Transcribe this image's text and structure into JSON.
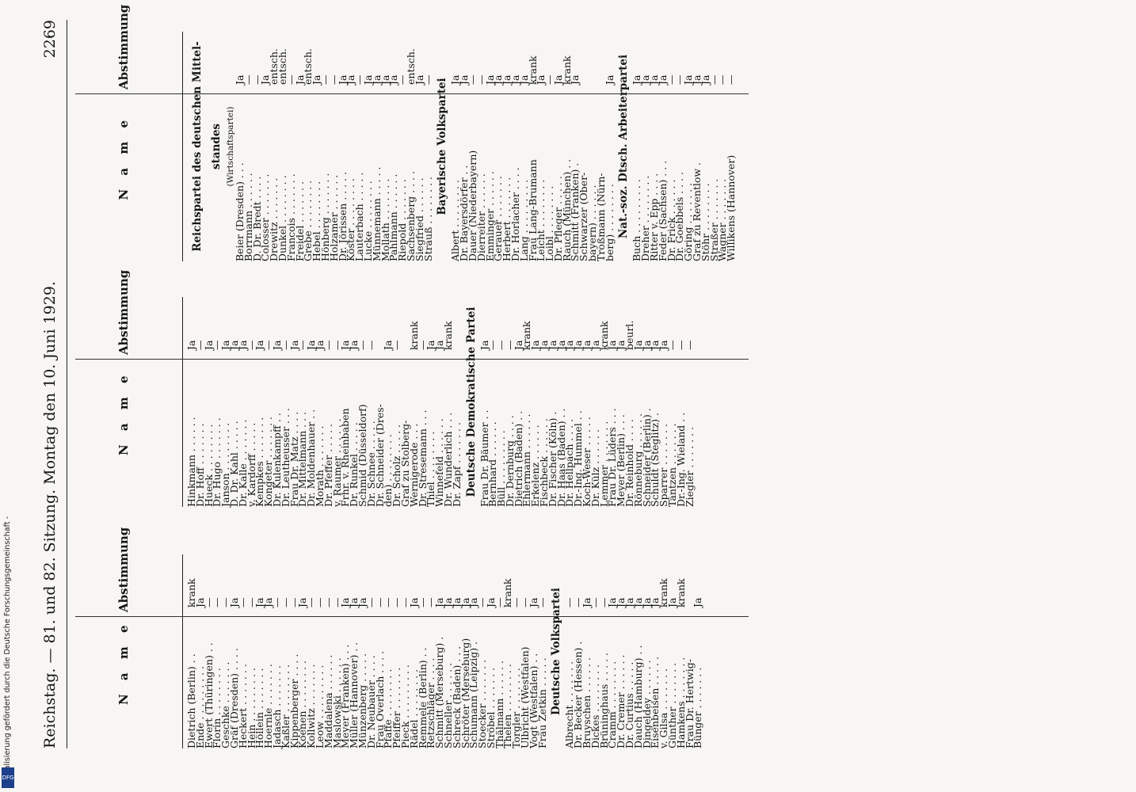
{
  "header": {
    "left": "Reichstag. — 81. und 82. Sitzung. Montag den 10. Juni 1929.",
    "right": "2269"
  },
  "column_headers": {
    "name": "N a m e",
    "vote": "Abstimmung"
  },
  "columns": [
    {
      "rows": [
        {
          "name": "Dietrich (Berlin) . .",
          "vote": "krank"
        },
        {
          "name": "Ende . . . . . . . . .",
          "vote": "Ja"
        },
        {
          "name": "Ewert (Thüringen) . .",
          "vote": "—"
        },
        {
          "name": "Florin . . . . . . . .",
          "vote": "—"
        },
        {
          "name": "Geschke . . . . . . .",
          "vote": "—"
        },
        {
          "name": "Gräf (Dresden) . . . .",
          "vote": "Ja"
        },
        {
          "name": "Heckert . . . . . . .",
          "vote": "—"
        },
        {
          "name": "Hein . . . . . . . . .",
          "vote": "—"
        },
        {
          "name": "Höllein . . . . . . .",
          "vote": "Ja"
        },
        {
          "name": "Hoernle . . . . . . .",
          "vote": "Ja"
        },
        {
          "name": "Jadasch . . . . . . .",
          "vote": "—"
        },
        {
          "name": "Kaßler . . . . . . . .",
          "vote": "—"
        },
        {
          "name": "Kippenberger . . . .",
          "vote": "—"
        },
        {
          "name": "Koenen . . . . . . . .",
          "vote": "Ja"
        },
        {
          "name": "Kollwitz . . . . . . .",
          "vote": "—"
        },
        {
          "name": "Leow . . . . . . . . .",
          "vote": "—"
        },
        {
          "name": "Maddalena . . . . . .",
          "vote": "—"
        },
        {
          "name": "Maslowski . . . . . .",
          "vote": "—"
        },
        {
          "name": "Meyer (Franken) . . .",
          "vote": "Ja"
        },
        {
          "name": "Müller (Hannover) . .",
          "vote": "Ja"
        },
        {
          "name": "Münzenberg . . . . .",
          "vote": "Ja"
        },
        {
          "name": "Dr. Neubauer . . . .",
          "vote": "—"
        },
        {
          "name": "Frau Overlach . . . .",
          "vote": "—"
        },
        {
          "name": "Pfaffe . . . . . . . .",
          "vote": "—"
        },
        {
          "name": "Pfeiffer . . . . . . .",
          "vote": "—"
        },
        {
          "name": "Pieck . . . . . . . . .",
          "vote": "—"
        },
        {
          "name": "Rädel . . . . . . . .",
          "vote": "Ja"
        },
        {
          "name": "Remmele (Berlin) . .",
          "vote": "—"
        },
        {
          "name": "Retzschläger . . . .",
          "vote": "—"
        },
        {
          "name": "Schmitt (Merseburg) .",
          "vote": "Ja"
        },
        {
          "name": "Schneller . . . . . .",
          "vote": "Ja"
        },
        {
          "name": "Schreck (Baden) . . .",
          "vote": "Ja"
        },
        {
          "name": "Schröter (Merseburg)",
          "vote": "Ja"
        },
        {
          "name": "Schumann (Leipzig) .",
          "vote": "Ja"
        },
        {
          "name": "Stoecker . . . . . . .",
          "vote": "—"
        },
        {
          "name": "Ströbel . . . . . . .",
          "vote": "Ja"
        },
        {
          "name": "Thälmann . . . . . .",
          "vote": "—"
        },
        {
          "name": "Thelen . . . . . . . .",
          "vote": "krank"
        },
        {
          "name": "Torgler . . . . . . .",
          "vote": "—"
        },
        {
          "name": "Ulbricht (Westfalen)",
          "vote": "—"
        },
        {
          "name": "Vogt (Westfalen) . .",
          "vote": "Ja"
        },
        {
          "name": "Frau Zetkin . . . . .",
          "vote": "—"
        },
        {
          "section": "Deutsche Volkspartei"
        },
        {
          "name": "Albrecht . . . . . . .",
          "vote": "—"
        },
        {
          "name": "Dr. Becker (Hessen) .",
          "vote": "—"
        },
        {
          "name": "Bruyschen . . . . . .",
          "vote": "Ja"
        },
        {
          "name": "Dickes . . . . . . . .",
          "vote": "—"
        },
        {
          "name": "Brüninghaus . . . . .",
          "vote": "—"
        },
        {
          "name": "Cramm . . . . . . . .",
          "vote": "Ja"
        },
        {
          "name": "Dr. Cremer . . . . . .",
          "vote": "Ja"
        },
        {
          "name": "Dr. Curtius . . . . .",
          "vote": "Ja"
        },
        {
          "name": "Dauch (Hamburg) . .",
          "vote": "Ja"
        },
        {
          "name": "Dingeldey . . . . . .",
          "vote": "Ja"
        },
        {
          "name": "Eisenbeisen . . . . .",
          "vote": "Ja"
        },
        {
          "name": "v. Gilsa . . . . . . .",
          "vote": "krank"
        },
        {
          "name": "Günther . . . . . . .",
          "vote": "Ja"
        },
        {
          "name": "Hamkens . . . . . . .",
          "vote": "krank"
        },
        {
          "name": "Frau Dr. Hertwig-",
          "vote": ""
        },
        {
          "name": "Bünger . . . . . . .",
          "vote": "Ja"
        }
      ]
    },
    {
      "rows": [
        {
          "name": "Hinkmann . . . . . .",
          "vote": "Ja"
        },
        {
          "name": "Dr. Hoff . . . . . . .",
          "vote": "—"
        },
        {
          "name": "Hueck . . . . . . . .",
          "vote": "Ja"
        },
        {
          "name": "Dr. Hugo . . . . . . .",
          "vote": "—"
        },
        {
          "name": "Janson . . . . . . . .",
          "vote": "Ja"
        },
        {
          "name": "D. Dr. Kahl . . . . .",
          "vote": "Ja"
        },
        {
          "name": "Dr. Kalle . . . . . . .",
          "vote": "Ja"
        },
        {
          "name": "v. Kardorff . . . . .",
          "vote": "—"
        },
        {
          "name": "Kempkes . . . . . . .",
          "vote": "Ja"
        },
        {
          "name": "Kongeter . . . . . . .",
          "vote": "—"
        },
        {
          "name": "Dr. Kulenkampff . .",
          "vote": "Ja"
        },
        {
          "name": "Dr. Leutheusser . . .",
          "vote": "—"
        },
        {
          "name": "Frau Dr. Matz . . . .",
          "vote": "Ja"
        },
        {
          "name": "Dr. Mittelmann . . .",
          "vote": "—"
        },
        {
          "name": "Dr. Moldenhauer . .",
          "vote": "Ja"
        },
        {
          "name": "Morath . . . . . . .",
          "vote": "Ja"
        },
        {
          "name": "Dr. Pfeffer . . . . .",
          "vote": "—"
        },
        {
          "name": "v. Raumer . . . . . .",
          "vote": "—"
        },
        {
          "name": "Frhr. v. Rheinbaben",
          "vote": "Ja"
        },
        {
          "name": "Dr. Runkel . . . . .",
          "vote": "Ja"
        },
        {
          "name": "Schmid (Düsseldorf)",
          "vote": "—"
        },
        {
          "name": "Dr. Schnee . . . . .",
          "vote": "—"
        },
        {
          "name": "Dr. Schneider (Dres-",
          "vote": ""
        },
        {
          "name": "den) . . . . . . . .",
          "vote": "Ja"
        },
        {
          "name": "Dr. Scholz . . . . .",
          "vote": "—"
        },
        {
          "name": "Graf zu Stolberg-",
          "vote": ""
        },
        {
          "name": "Wernigerode . . .",
          "vote": "krank"
        },
        {
          "name": "Dr. Stresemann . . .",
          "vote": "—"
        },
        {
          "name": "Thiel . . . . . . . .",
          "vote": "Ja"
        },
        {
          "name": "Winnefeld . . . . . .",
          "vote": "Ja"
        },
        {
          "name": "Dr. Wunderlich . . .",
          "vote": "krank"
        },
        {
          "name": "Dr. Zapf . . . . . . .",
          "vote": ""
        },
        {
          "section": "Deutsche Demokratische Partei"
        },
        {
          "name": "Frau Dr. Bäumer . .",
          "vote": "Ja"
        },
        {
          "name": "Bernhard . . . . . .",
          "vote": "—"
        },
        {
          "name": "Büll . . . . . . . . .",
          "vote": "—"
        },
        {
          "name": "Dr. Dernburg . . . .",
          "vote": "—"
        },
        {
          "name": "Dietrich (Baden) . .",
          "vote": "Ja"
        },
        {
          "name": "Ehlermann . . . . . .",
          "vote": "krank"
        },
        {
          "name": "Erkelenz . . . . . .",
          "vote": "Ja"
        },
        {
          "name": "Fischbeck . . . . . .",
          "vote": "Ja"
        },
        {
          "name": "Dr. Fischer (Köln) .",
          "vote": "Ja"
        },
        {
          "name": "Dr. Haas (Baden) . .",
          "vote": "Ja"
        },
        {
          "name": "Dr. Hellpach . . . .",
          "vote": "Ja"
        },
        {
          "name": "Dr.-Ing. Hummel . .",
          "vote": "Ja"
        },
        {
          "name": "Koch-Weser . . . . .",
          "vote": "Ja"
        },
        {
          "name": "Dr. Külz . . . . . .",
          "vote": "Ja"
        },
        {
          "name": "Lemmer . . . . . . .",
          "vote": "krank"
        },
        {
          "name": "Frau Dr. Lüders . . .",
          "vote": "Ja"
        },
        {
          "name": "Meyer (Berlin) . . .",
          "vote": "Ja"
        },
        {
          "name": "Dr. Reinhold . . . .",
          "vote": "beurl."
        },
        {
          "name": "Rönneburg . . . . . .",
          "vote": "Ja"
        },
        {
          "name": "Schneider (Berlin) .",
          "vote": "Ja"
        },
        {
          "name": "Schuldt (Steglitz) .",
          "vote": "Ja"
        },
        {
          "name": "Sparrer . . . . . . .",
          "vote": "Ja"
        },
        {
          "name": "Tantzen . . . . . . .",
          "vote": "—"
        },
        {
          "name": "Dr.-Ing. Wieland . .",
          "vote": "—"
        },
        {
          "name": "Ziegler . . . . . . .",
          "vote": "—"
        }
      ]
    },
    {
      "rows": [
        {
          "section": "Reichspartei des deutschen Mittel-"
        },
        {
          "section": "standes"
        },
        {
          "subsection": "(Wirtschaftspartei)"
        },
        {
          "name": "Beier (Dresden) . . .",
          "vote": "Ja"
        },
        {
          "name": "Borrmann . . . . . .",
          "vote": "—"
        },
        {
          "name": "D. Dr. Bredt . . . .",
          "vote": "—"
        },
        {
          "name": "Colosser . . . . . . .",
          "vote": "Ja"
        },
        {
          "name": "Drewitz . . . . . . .",
          "vote": "entsch."
        },
        {
          "name": "Dunkel . . . . . . . .",
          "vote": "entsch."
        },
        {
          "name": "Francois . . . . . . .",
          "vote": "—"
        },
        {
          "name": "Freidel . . . . . . .",
          "vote": "Ja"
        },
        {
          "name": "Grebe . . . . . . . .",
          "vote": "entsch."
        },
        {
          "name": "Hebel . . . . . . . .",
          "vote": "Ja"
        },
        {
          "name": "Hönberg . . . . . . .",
          "vote": "—"
        },
        {
          "name": "Holzamer . . . . . .",
          "vote": "—"
        },
        {
          "name": "Dr. Jörissen . . . . .",
          "vote": "Ja"
        },
        {
          "name": "Köster . . . . . . . .",
          "vote": "Ja"
        },
        {
          "name": "Lauterbach . . . . .",
          "vote": "—"
        },
        {
          "name": "Lucke . . . . . . . .",
          "vote": "Ja"
        },
        {
          "name": "Münnemann . . . . .",
          "vote": "Ja"
        },
        {
          "name": "Mollath . . . . . . .",
          "vote": "Ja"
        },
        {
          "name": "Pahlmann . . . . . .",
          "vote": "Ja"
        },
        {
          "name": "Riepold . . . . . . .",
          "vote": "—"
        },
        {
          "name": "Sachsenberg . . . .",
          "vote": "entsch."
        },
        {
          "name": "Siegfried . . . . . .",
          "vote": "Ja"
        },
        {
          "name": "Strauß . . . . . . . .",
          "vote": "—"
        },
        {
          "section": "Bayerische Volkspartei"
        },
        {
          "name": "Albert . . . . . . . .",
          "vote": "Ja"
        },
        {
          "name": "Dr. Bayersdörfer . .",
          "vote": "Ja"
        },
        {
          "name": "Dauer (Niederbayern)",
          "vote": "—"
        },
        {
          "name": "Dierreiter . . . . . .",
          "vote": "—"
        },
        {
          "name": "Emminger . . . . . .",
          "vote": "Ja"
        },
        {
          "name": "Gerauer . . . . . . .",
          "vote": "Ja"
        },
        {
          "name": "Herbert . . . . . . .",
          "vote": "Ja"
        },
        {
          "name": "Dr. Horlacher . . . .",
          "vote": "Ja"
        },
        {
          "name": "Lang . . . . . . . . .",
          "vote": "Ja"
        },
        {
          "name": "Frau Lang-Brumann",
          "vote": "krank"
        },
        {
          "name": "Leicht . . . . . . . .",
          "vote": "Ja"
        },
        {
          "name": "Loibl . . . . . . . .",
          "vote": "—"
        },
        {
          "name": "Dr. Pfleger . . . . .",
          "vote": "Ja"
        },
        {
          "name": "Rauch (München) . .",
          "vote": "krank"
        },
        {
          "name": "Schmitt (Franken) .",
          "vote": "Ja"
        },
        {
          "name": "Schwarzer (Ober-",
          "vote": ""
        },
        {
          "name": "bayern) . . . . . .",
          "vote": ""
        },
        {
          "name": "Troßmann (Nürn-",
          "vote": ""
        },
        {
          "name": "berg) . . . . . . . .",
          "vote": "Ja"
        },
        {
          "section": "Nat.-soz. Dtsch. Arbeiterpartei"
        },
        {
          "name": "Buch . . . . . . . . .",
          "vote": "Ja"
        },
        {
          "name": "Dreher . . . . . . . .",
          "vote": "Ja"
        },
        {
          "name": "Ritter v. Epp . . . .",
          "vote": "Ja"
        },
        {
          "name": "Feder (Sachsen) . . .",
          "vote": "Ja"
        },
        {
          "name": "Dr. Frick . . . . . .",
          "vote": "—"
        },
        {
          "name": "Dr. Goebbels . . . .",
          "vote": "—"
        },
        {
          "name": "Göring . . . . . . .",
          "vote": "Ja"
        },
        {
          "name": "Graf zu Reventlow .",
          "vote": "Ja"
        },
        {
          "name": "Stöhr . . . . . . . .",
          "vote": "Ja"
        },
        {
          "name": "Straßer . . . . . . .",
          "vote": "—"
        },
        {
          "name": "Wagner . . . . . . .",
          "vote": "—"
        },
        {
          "name": "Willikens (Hannover)",
          "vote": "—"
        }
      ]
    }
  ],
  "sidebar": {
    "text": "Digitalisierung gefördert durch die Deutsche Forschungsgemeinschaft -",
    "logo": "DFG"
  }
}
